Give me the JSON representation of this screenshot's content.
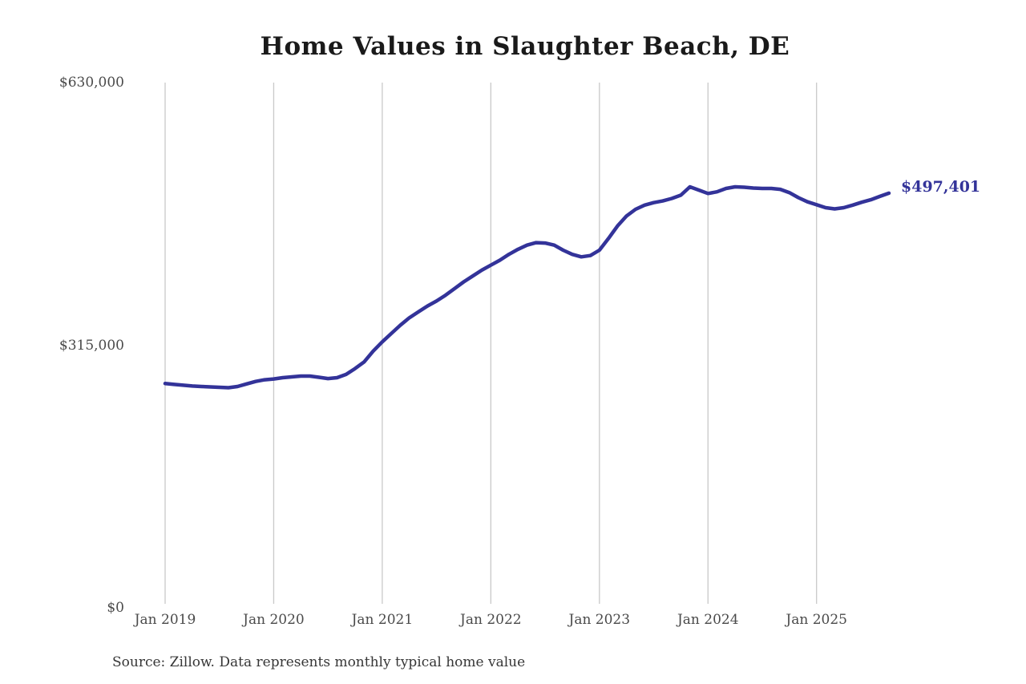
{
  "chart_data": {
    "type": "line",
    "title": "Home Values in Slaughter Beach, DE",
    "source": "Source: Zillow. Data represents monthly typical home value",
    "end_label": "$497,401",
    "end_value": 497401,
    "line_color": "#333399",
    "grid_color": "#c9c9c9",
    "text_color": "#4a4a4a",
    "ylim": [
      0,
      630000
    ],
    "grid": "vertical-only",
    "legend": "none",
    "y_ticks": [
      {
        "label": "$630,000",
        "value": 630000
      },
      {
        "label": "$315,000",
        "value": 315000
      },
      {
        "label": "$0",
        "value": 0
      }
    ],
    "x_ticks": [
      {
        "label": "Jan 2019",
        "month_index": 0
      },
      {
        "label": "Jan 2020",
        "month_index": 12
      },
      {
        "label": "Jan 2021",
        "month_index": 24
      },
      {
        "label": "Jan 2022",
        "month_index": 36
      },
      {
        "label": "Jan 2023",
        "month_index": 48
      },
      {
        "label": "Jan 2024",
        "month_index": 60
      },
      {
        "label": "Jan 2025",
        "month_index": 72
      }
    ],
    "series": [
      {
        "name": "Monthly typical home value",
        "start_month": "2019-01",
        "end_month": "2025-09",
        "values": [
          269000,
          268000,
          267000,
          266000,
          265500,
          265000,
          264500,
          264000,
          265500,
          268500,
          271500,
          273500,
          274500,
          276000,
          277000,
          278000,
          278000,
          276500,
          275000,
          276000,
          280000,
          287000,
          295000,
          308000,
          319000,
          329000,
          339000,
          348000,
          355000,
          362000,
          368000,
          375000,
          383000,
          391000,
          398000,
          405000,
          411000,
          417000,
          424000,
          430000,
          435000,
          438000,
          437500,
          435000,
          429000,
          424000,
          421000,
          422500,
          429000,
          443000,
          458000,
          470000,
          478000,
          483000,
          486000,
          488000,
          491000,
          495000,
          505000,
          501000,
          497000,
          499000,
          503000,
          505000,
          504500,
          503500,
          503000,
          503000,
          502000,
          498000,
          492000,
          487000,
          483500,
          480000,
          478500,
          480000,
          483000,
          486500,
          489500,
          493500,
          497401
        ]
      }
    ]
  }
}
